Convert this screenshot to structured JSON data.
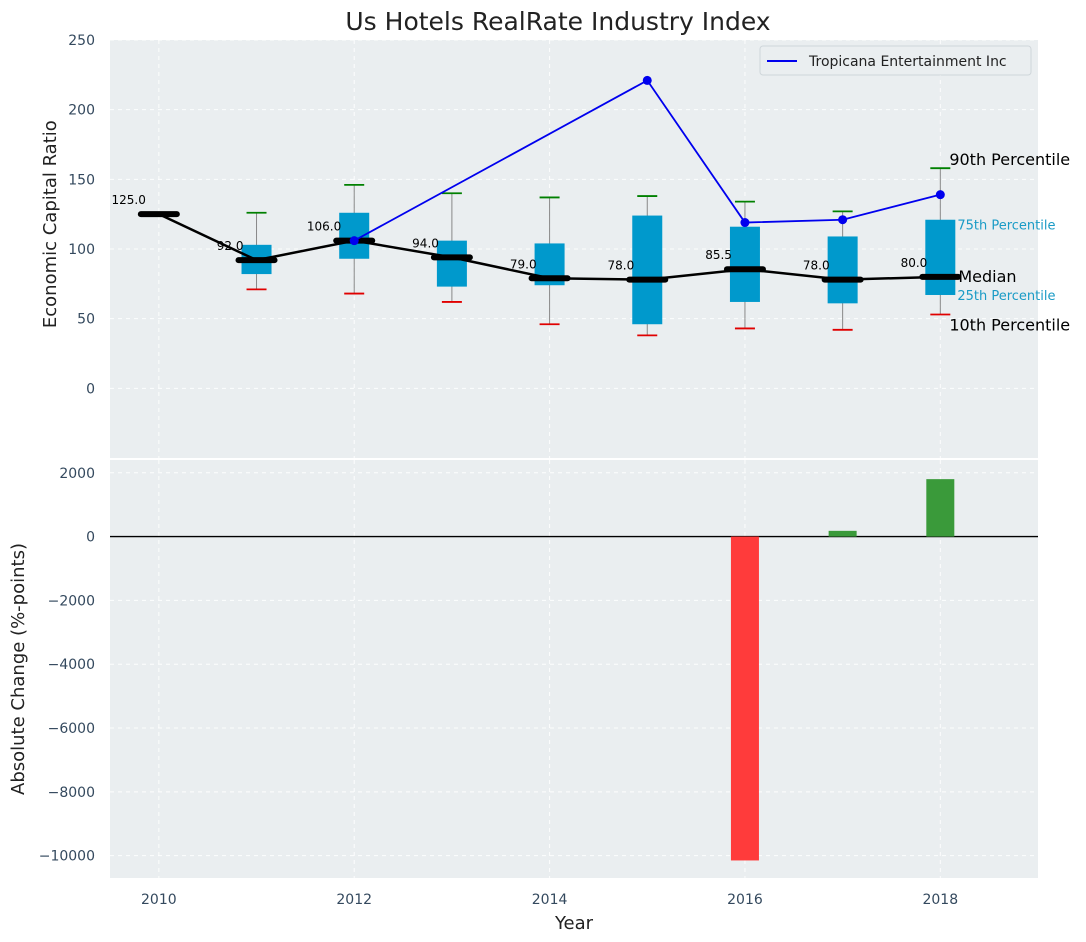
{
  "chart_data": [
    {
      "type": "box",
      "title": "Us Hotels RealRate Industry Index",
      "xlabel": "",
      "ylabel": "Economic Capital Ratio",
      "xlim": [
        2009.5,
        2019
      ],
      "ylim": [
        -50,
        250
      ],
      "yticks": [
        0,
        50,
        100,
        150,
        200,
        250
      ],
      "years": [
        2010,
        2011,
        2012,
        2013,
        2014,
        2015,
        2016,
        2017,
        2018
      ],
      "median": [
        125,
        92,
        106,
        94,
        79,
        78,
        85.5,
        78,
        80
      ],
      "median_labels": [
        "125.0",
        "92.0",
        "106.0",
        "94.0",
        "79.0",
        "78.0",
        "85.5",
        "78.0",
        "80.0"
      ],
      "box_low": [
        null,
        82,
        93,
        73,
        74,
        46,
        62,
        61,
        67
      ],
      "box_high": [
        null,
        103,
        126,
        106,
        104,
        124,
        116,
        109,
        121
      ],
      "p10": [
        null,
        71,
        68,
        62,
        46,
        38,
        43,
        42,
        53
      ],
      "p90": [
        null,
        126,
        146,
        140,
        137,
        138,
        134,
        127,
        158
      ],
      "company_series": {
        "name": "Tropicana Entertainment Inc",
        "color": "#0000ee",
        "points": [
          [
            2012,
            106
          ],
          [
            2015,
            221
          ],
          [
            2016,
            119
          ],
          [
            2017,
            121
          ],
          [
            2018,
            139
          ]
        ]
      },
      "annotations": {
        "p90": "90th Percentile",
        "p75": "75th Percentile",
        "median": "Median",
        "p25": "25th Percentile",
        "p10": "10th Percentile"
      },
      "colors": {
        "box": "#0099cc",
        "p90_cap": "#008000",
        "p10_cap": "#e00000",
        "median_line": "#000000"
      }
    },
    {
      "type": "bar",
      "xlabel": "Year",
      "ylabel": "Absolute Change (%-points)",
      "xticks": [
        2010,
        2012,
        2014,
        2016,
        2018
      ],
      "xtick_labels": [
        "2010",
        "2012",
        "2014",
        "2016",
        "2018"
      ],
      "ylim": [
        -10700,
        2400
      ],
      "yticks": [
        2000,
        0,
        -2000,
        -4000,
        -6000,
        -8000,
        -10000
      ],
      "ytick_labels": [
        "2000",
        "0",
        "−2000",
        "−4000",
        "−6000",
        "−8000",
        "−10000"
      ],
      "x": [
        2016,
        2017,
        2018
      ],
      "values": [
        -10150,
        180,
        1800
      ],
      "colors": {
        "negative": "#ff3b3b",
        "positive": "#3a9a3a"
      }
    }
  ]
}
